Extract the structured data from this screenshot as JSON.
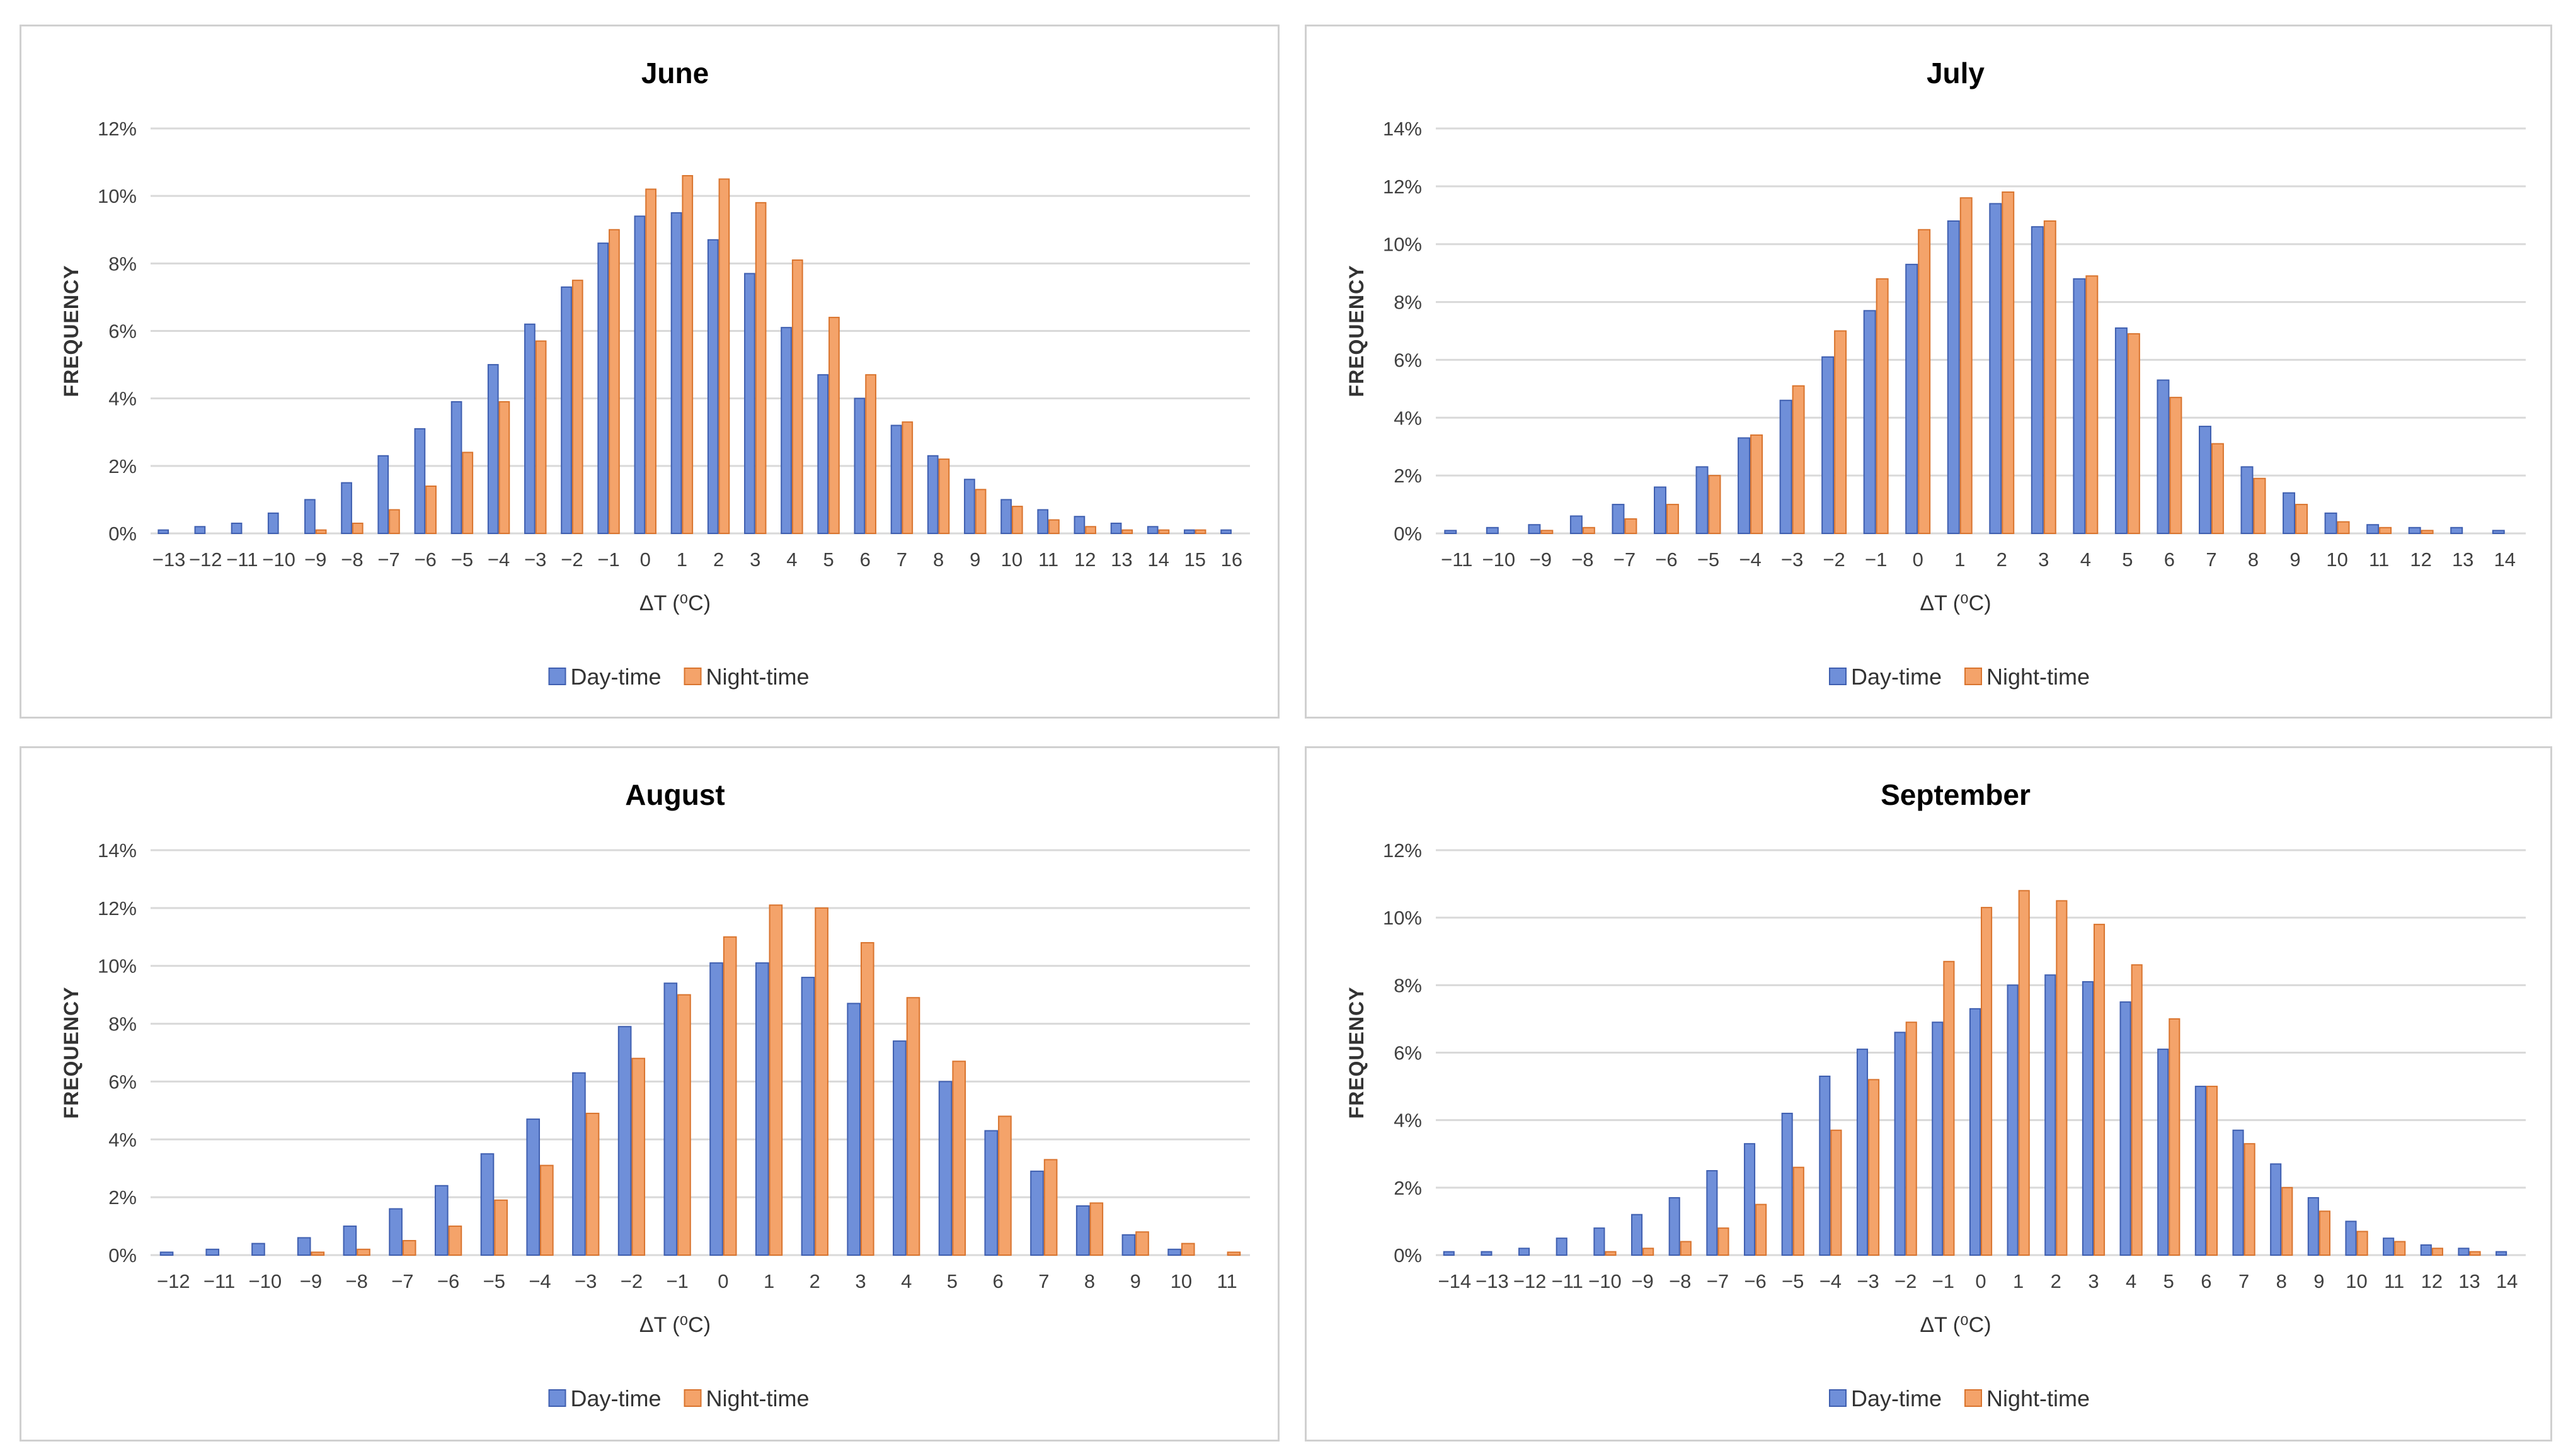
{
  "colors": {
    "day": "#6f8fd9",
    "day_edge": "#3f5fb0",
    "night": "#f4a36a",
    "night_edge": "#d9742e",
    "grid": "#d9d9d9"
  },
  "chart_data": [
    {
      "type": "bar",
      "title": "June",
      "xlabel": "ΔT (⁰C)",
      "ylabel": "FREQUENCY",
      "ylim": [
        0,
        12
      ],
      "yticks": [
        "0%",
        "2%",
        "4%",
        "6%",
        "8%",
        "10%",
        "12%"
      ],
      "legend": "bottom",
      "categories": [
        "−13",
        "−12",
        "−11",
        "−10",
        "−9",
        "−8",
        "−7",
        "−6",
        "−5",
        "−4",
        "−3",
        "−2",
        "−1",
        "0",
        "1",
        "2",
        "3",
        "4",
        "5",
        "6",
        "7",
        "8",
        "9",
        "10",
        "11",
        "12",
        "13",
        "14",
        "15",
        "16"
      ],
      "series": [
        {
          "name": "Day-time",
          "values": [
            0.1,
            0.2,
            0.3,
            0.6,
            1.0,
            1.5,
            2.3,
            3.1,
            3.9,
            5.0,
            6.2,
            7.3,
            8.6,
            9.4,
            9.5,
            8.7,
            7.7,
            6.1,
            4.7,
            4.0,
            3.2,
            2.3,
            1.6,
            1.0,
            0.7,
            0.5,
            0.3,
            0.2,
            0.1,
            0.1
          ]
        },
        {
          "name": "Night-time",
          "values": [
            0,
            0,
            0,
            0,
            0.1,
            0.3,
            0.7,
            1.4,
            2.4,
            3.9,
            5.7,
            7.5,
            9.0,
            10.2,
            10.6,
            10.5,
            9.8,
            8.1,
            6.4,
            4.7,
            3.3,
            2.2,
            1.3,
            0.8,
            0.4,
            0.2,
            0.1,
            0.1,
            0.1,
            0
          ]
        }
      ]
    },
    {
      "type": "bar",
      "title": "July",
      "xlabel": "ΔT (⁰C)",
      "ylabel": "FREQUENCY",
      "ylim": [
        0,
        14
      ],
      "yticks": [
        "0%",
        "2%",
        "4%",
        "6%",
        "8%",
        "10%",
        "12%",
        "14%"
      ],
      "legend": "bottom",
      "categories": [
        "−11",
        "−10",
        "−9",
        "−8",
        "−7",
        "−6",
        "−5",
        "−4",
        "−3",
        "−2",
        "−1",
        "0",
        "1",
        "2",
        "3",
        "4",
        "5",
        "6",
        "7",
        "8",
        "9",
        "10",
        "11",
        "12",
        "13",
        "14"
      ],
      "series": [
        {
          "name": "Day-time",
          "values": [
            0.1,
            0.2,
            0.3,
            0.6,
            1.0,
            1.6,
            2.3,
            3.3,
            4.6,
            6.1,
            7.7,
            9.3,
            10.8,
            11.4,
            10.6,
            8.8,
            7.1,
            5.3,
            3.7,
            2.3,
            1.4,
            0.7,
            0.3,
            0.2,
            0.2,
            0.1
          ]
        },
        {
          "name": "Night-time",
          "values": [
            0,
            0,
            0.1,
            0.2,
            0.5,
            1.0,
            2.0,
            3.4,
            5.1,
            7.0,
            8.8,
            10.5,
            11.6,
            11.8,
            10.8,
            8.9,
            6.9,
            4.7,
            3.1,
            1.9,
            1.0,
            0.4,
            0.2,
            0.1,
            0,
            0
          ]
        }
      ]
    },
    {
      "type": "bar",
      "title": "August",
      "xlabel": "ΔT (⁰C)",
      "ylabel": "FREQUENCY",
      "ylim": [
        0,
        14
      ],
      "yticks": [
        "0%",
        "2%",
        "4%",
        "6%",
        "8%",
        "10%",
        "12%",
        "14%"
      ],
      "legend": "bottom",
      "categories": [
        "−12",
        "−11",
        "−10",
        "−9",
        "−8",
        "−7",
        "−6",
        "−5",
        "−4",
        "−3",
        "−2",
        "−1",
        "0",
        "1",
        "2",
        "3",
        "4",
        "5",
        "6",
        "7",
        "8",
        "9",
        "10",
        "11"
      ],
      "series": [
        {
          "name": "Day-time",
          "values": [
            0.1,
            0.2,
            0.4,
            0.6,
            1.0,
            1.6,
            2.4,
            3.5,
            4.7,
            6.3,
            7.9,
            9.4,
            10.1,
            10.1,
            9.6,
            8.7,
            7.4,
            6.0,
            4.3,
            2.9,
            1.7,
            0.7,
            0.2,
            0
          ]
        },
        {
          "name": "Night-time",
          "values": [
            0,
            0,
            0,
            0.1,
            0.2,
            0.5,
            1.0,
            1.9,
            3.1,
            4.9,
            6.8,
            9.0,
            11.0,
            12.1,
            12.0,
            10.8,
            8.9,
            6.7,
            4.8,
            3.3,
            1.8,
            0.8,
            0.4,
            0.1
          ]
        }
      ]
    },
    {
      "type": "bar",
      "title": "September",
      "xlabel": "ΔT (⁰C)",
      "ylabel": "FREQUENCY",
      "ylim": [
        0,
        12
      ],
      "yticks": [
        "0%",
        "2%",
        "4%",
        "6%",
        "8%",
        "10%",
        "12%"
      ],
      "legend": "bottom",
      "categories": [
        "−14",
        "−13",
        "−12",
        "−11",
        "−10",
        "−9",
        "−8",
        "−7",
        "−6",
        "−5",
        "−4",
        "−3",
        "−2",
        "−1",
        "0",
        "1",
        "2",
        "3",
        "4",
        "5",
        "6",
        "7",
        "8",
        "9",
        "10",
        "11",
        "12",
        "13",
        "14"
      ],
      "series": [
        {
          "name": "Day-time",
          "values": [
            0.1,
            0.1,
            0.2,
            0.5,
            0.8,
            1.2,
            1.7,
            2.5,
            3.3,
            4.2,
            5.3,
            6.1,
            6.6,
            6.9,
            7.3,
            8.0,
            8.3,
            8.1,
            7.5,
            6.1,
            5.0,
            3.7,
            2.7,
            1.7,
            1.0,
            0.5,
            0.3,
            0.2,
            0.1
          ]
        },
        {
          "name": "Night-time",
          "values": [
            0,
            0,
            0,
            0,
            0.1,
            0.2,
            0.4,
            0.8,
            1.5,
            2.6,
            3.7,
            5.2,
            6.9,
            8.7,
            10.3,
            10.8,
            10.5,
            9.8,
            8.6,
            7.0,
            5.0,
            3.3,
            2.0,
            1.3,
            0.7,
            0.4,
            0.2,
            0.1,
            0
          ]
        }
      ]
    }
  ]
}
